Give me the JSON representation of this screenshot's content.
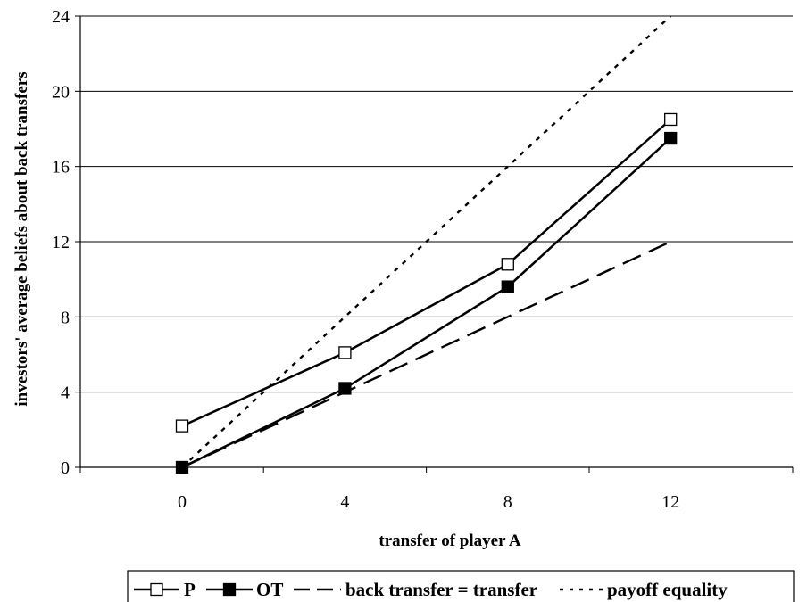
{
  "chart_data": {
    "type": "line",
    "title": "",
    "xlabel": "transfer of player A",
    "ylabel": "investors' average beliefs about back transfers",
    "x": [
      0,
      4,
      8,
      12
    ],
    "xlim": [
      -2.5,
      15
    ],
    "ylim": [
      0,
      24
    ],
    "x_ticks": [
      "0",
      "4",
      "8",
      "12"
    ],
    "y_ticks": [
      "0",
      "4",
      "8",
      "12",
      "16",
      "20",
      "24"
    ],
    "grid": "horizontal",
    "legend_position": "bottom",
    "series": [
      {
        "name": "P",
        "values": [
          2.2,
          6.1,
          10.8,
          18.5
        ],
        "color": "#000000",
        "line": "solid",
        "marker": "hollow-square"
      },
      {
        "name": "OT",
        "values": [
          0,
          4.2,
          9.6,
          17.5
        ],
        "color": "#000000",
        "line": "solid",
        "marker": "filled-square"
      },
      {
        "name": "back transfer = transfer",
        "values": [
          0,
          4,
          8,
          12
        ],
        "color": "#000000",
        "line": "dashed",
        "marker": "none"
      },
      {
        "name": "payoff equality",
        "values": [
          0,
          8,
          16,
          24
        ],
        "color": "#000000",
        "line": "dotted",
        "marker": "none"
      }
    ]
  }
}
